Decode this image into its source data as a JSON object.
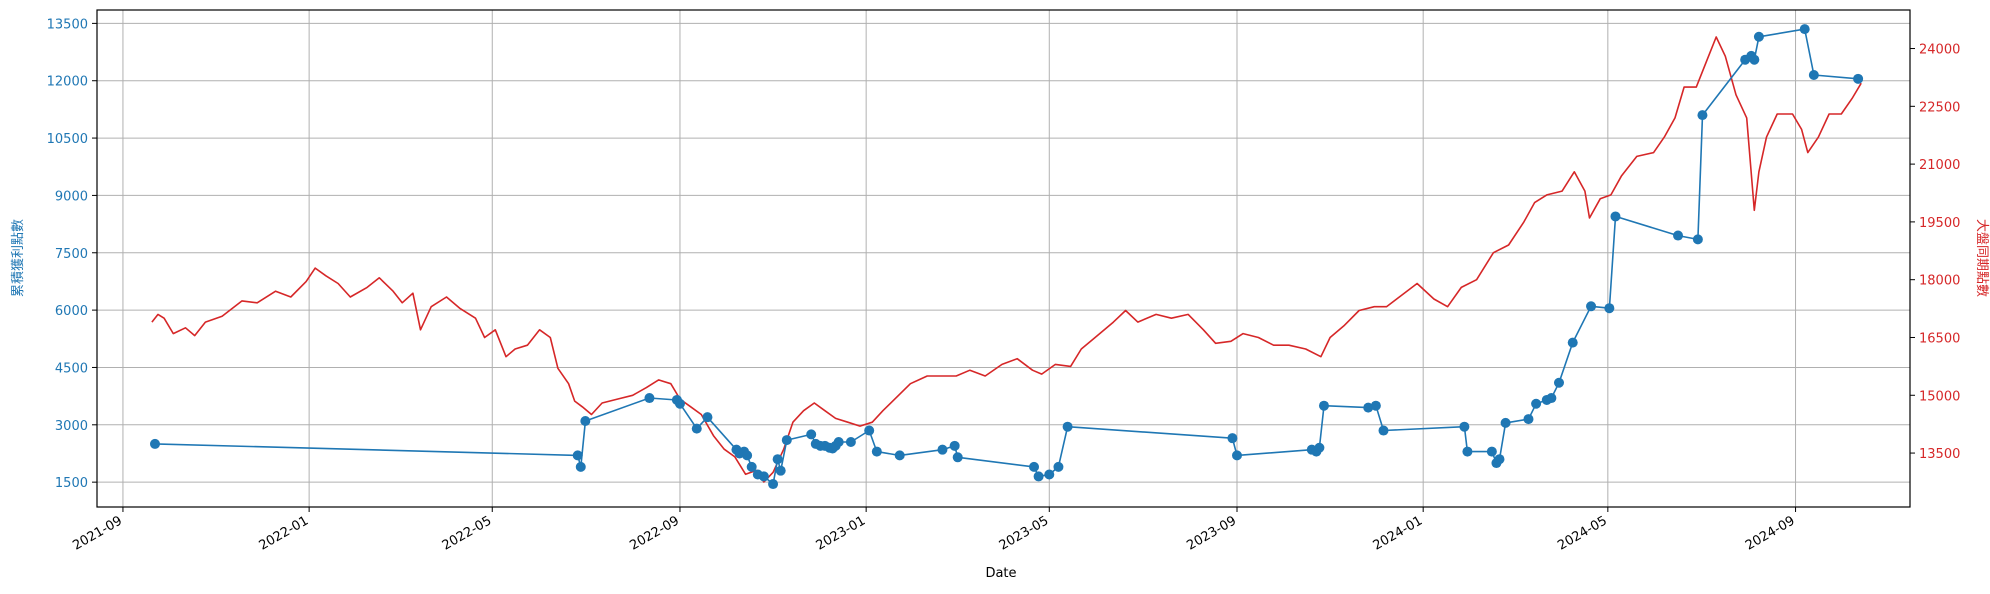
{
  "chart_data": {
    "type": "line",
    "xlabel": "Date",
    "ylabel_left": "累積獲利點數",
    "ylabel_right": "大盤同期點數",
    "x_ticks": [
      "2021-09",
      "2022-01",
      "2022-05",
      "2022-09",
      "2023-01",
      "2023-05",
      "2023-09",
      "2024-01",
      "2024-05",
      "2024-09"
    ],
    "y_left_ticks": [
      1500,
      3000,
      4500,
      6000,
      7500,
      9000,
      10500,
      12000,
      13500
    ],
    "y_right_ticks": [
      13500,
      15000,
      16500,
      18000,
      19500,
      21000,
      22500,
      24000
    ],
    "ylim_left": [
      850,
      13850
    ],
    "ylim_right": [
      12100,
      25000
    ],
    "xlim": [
      "2021-08-15",
      "2024-11-15"
    ],
    "grid": true,
    "colors": {
      "left_series": "#1f77b4",
      "right_series": "#d62728",
      "grid": "#b0b0b0",
      "axis": "#000000"
    },
    "series": [
      {
        "axis": "left",
        "marker": "circle",
        "points": [
          [
            "2021-09-22",
            2500
          ],
          [
            "2022-06-26",
            2200
          ],
          [
            "2022-06-28",
            1900
          ],
          [
            "2022-07-01",
            3100
          ],
          [
            "2022-08-12",
            3700
          ],
          [
            "2022-08-30",
            3650
          ],
          [
            "2022-09-01",
            3550
          ],
          [
            "2022-09-12",
            2900
          ],
          [
            "2022-09-19",
            3200
          ],
          [
            "2022-10-08",
            2350
          ],
          [
            "2022-10-10",
            2250
          ],
          [
            "2022-10-13",
            2300
          ],
          [
            "2022-10-15",
            2200
          ],
          [
            "2022-10-18",
            1900
          ],
          [
            "2022-10-22",
            1700
          ],
          [
            "2022-10-26",
            1650
          ],
          [
            "2022-11-01",
            1450
          ],
          [
            "2022-11-04",
            2100
          ],
          [
            "2022-11-06",
            1800
          ],
          [
            "2022-11-10",
            2600
          ],
          [
            "2022-11-26",
            2750
          ],
          [
            "2022-11-29",
            2500
          ],
          [
            "2022-12-02",
            2450
          ],
          [
            "2022-12-05",
            2450
          ],
          [
            "2022-12-08",
            2400
          ],
          [
            "2022-12-10",
            2380
          ],
          [
            "2022-12-12",
            2450
          ],
          [
            "2022-12-14",
            2550
          ],
          [
            "2022-12-22",
            2550
          ],
          [
            "2023-01-03",
            2850
          ],
          [
            "2023-01-08",
            2300
          ],
          [
            "2023-01-23",
            2200
          ],
          [
            "2023-02-20",
            2350
          ],
          [
            "2023-02-28",
            2450
          ],
          [
            "2023-03-02",
            2150
          ],
          [
            "2023-04-21",
            1900
          ],
          [
            "2023-04-24",
            1650
          ],
          [
            "2023-05-01",
            1700
          ],
          [
            "2023-05-07",
            1900
          ],
          [
            "2023-05-13",
            2950
          ],
          [
            "2023-08-29",
            2650
          ],
          [
            "2023-09-01",
            2200
          ],
          [
            "2023-10-20",
            2350
          ],
          [
            "2023-10-23",
            2300
          ],
          [
            "2023-10-25",
            2400
          ],
          [
            "2023-10-28",
            3500
          ],
          [
            "2023-11-26",
            3450
          ],
          [
            "2023-12-01",
            3500
          ],
          [
            "2023-12-06",
            2850
          ],
          [
            "2024-01-28",
            2950
          ],
          [
            "2024-01-30",
            2300
          ],
          [
            "2024-02-15",
            2300
          ],
          [
            "2024-02-18",
            2000
          ],
          [
            "2024-02-20",
            2100
          ],
          [
            "2024-02-24",
            3050
          ],
          [
            "2024-03-10",
            3150
          ],
          [
            "2024-03-15",
            3550
          ],
          [
            "2024-03-22",
            3650
          ],
          [
            "2024-03-25",
            3700
          ],
          [
            "2024-03-30",
            4100
          ],
          [
            "2024-04-08",
            5150
          ],
          [
            "2024-04-20",
            6100
          ],
          [
            "2024-05-02",
            6050
          ],
          [
            "2024-05-06",
            8450
          ],
          [
            "2024-06-16",
            7950
          ],
          [
            "2024-06-29",
            7850
          ],
          [
            "2024-07-02",
            11100
          ],
          [
            "2024-07-30",
            12550
          ],
          [
            "2024-08-03",
            12650
          ],
          [
            "2024-08-05",
            12550
          ],
          [
            "2024-08-08",
            13150
          ],
          [
            "2024-09-07",
            13350
          ],
          [
            "2024-09-13",
            12150
          ],
          [
            "2024-10-12",
            12050
          ]
        ]
      },
      {
        "axis": "right",
        "marker": "none",
        "points": [
          [
            "2021-09-20",
            16900
          ],
          [
            "2021-09-24",
            17100
          ],
          [
            "2021-09-28",
            17000
          ],
          [
            "2021-10-04",
            16600
          ],
          [
            "2021-10-12",
            16750
          ],
          [
            "2021-10-18",
            16550
          ],
          [
            "2021-10-25",
            16900
          ],
          [
            "2021-11-05",
            17050
          ],
          [
            "2021-11-18",
            17450
          ],
          [
            "2021-11-28",
            17400
          ],
          [
            "2021-12-10",
            17700
          ],
          [
            "2021-12-20",
            17550
          ],
          [
            "2021-12-30",
            17950
          ],
          [
            "2022-01-05",
            18300
          ],
          [
            "2022-01-12",
            18100
          ],
          [
            "2022-01-20",
            17900
          ],
          [
            "2022-01-28",
            17550
          ],
          [
            "2022-02-08",
            17800
          ],
          [
            "2022-02-16",
            18050
          ],
          [
            "2022-02-25",
            17700
          ],
          [
            "2022-03-03",
            17400
          ],
          [
            "2022-03-10",
            17650
          ],
          [
            "2022-03-15",
            16700
          ],
          [
            "2022-03-22",
            17300
          ],
          [
            "2022-04-01",
            17550
          ],
          [
            "2022-04-10",
            17250
          ],
          [
            "2022-04-20",
            17000
          ],
          [
            "2022-04-26",
            16500
          ],
          [
            "2022-05-03",
            16700
          ],
          [
            "2022-05-10",
            16000
          ],
          [
            "2022-05-16",
            16200
          ],
          [
            "2022-05-24",
            16300
          ],
          [
            "2022-06-01",
            16700
          ],
          [
            "2022-06-08",
            16500
          ],
          [
            "2022-06-13",
            15700
          ],
          [
            "2022-06-20",
            15300
          ],
          [
            "2022-06-24",
            14850
          ],
          [
            "2022-06-29",
            14700
          ],
          [
            "2022-07-05",
            14500
          ],
          [
            "2022-07-12",
            14800
          ],
          [
            "2022-07-22",
            14900
          ],
          [
            "2022-08-01",
            15000
          ],
          [
            "2022-08-10",
            15200
          ],
          [
            "2022-08-18",
            15400
          ],
          [
            "2022-08-26",
            15300
          ],
          [
            "2022-09-01",
            14900
          ],
          [
            "2022-09-08",
            14700
          ],
          [
            "2022-09-15",
            14500
          ],
          [
            "2022-09-23",
            13950
          ],
          [
            "2022-09-30",
            13600
          ],
          [
            "2022-10-07",
            13400
          ],
          [
            "2022-10-14",
            12950
          ],
          [
            "2022-10-21",
            13050
          ],
          [
            "2022-10-26",
            12750
          ],
          [
            "2022-11-01",
            13000
          ],
          [
            "2022-11-08",
            13600
          ],
          [
            "2022-11-14",
            14300
          ],
          [
            "2022-11-21",
            14600
          ],
          [
            "2022-11-28",
            14800
          ],
          [
            "2022-12-05",
            14600
          ],
          [
            "2022-12-12",
            14400
          ],
          [
            "2022-12-20",
            14300
          ],
          [
            "2022-12-28",
            14200
          ],
          [
            "2023-01-05",
            14300
          ],
          [
            "2023-01-12",
            14600
          ],
          [
            "2023-01-30",
            15300
          ],
          [
            "2023-02-10",
            15500
          ],
          [
            "2023-02-20",
            15500
          ],
          [
            "2023-03-01",
            15500
          ],
          [
            "2023-03-10",
            15650
          ],
          [
            "2023-03-20",
            15500
          ],
          [
            "2023-03-31",
            15800
          ],
          [
            "2023-04-10",
            15950
          ],
          [
            "2023-04-20",
            15650
          ],
          [
            "2023-04-26",
            15550
          ],
          [
            "2023-05-05",
            15800
          ],
          [
            "2023-05-15",
            15750
          ],
          [
            "2023-05-22",
            16200
          ],
          [
            "2023-05-31",
            16500
          ],
          [
            "2023-06-12",
            16900
          ],
          [
            "2023-06-20",
            17200
          ],
          [
            "2023-06-28",
            16900
          ],
          [
            "2023-07-10",
            17100
          ],
          [
            "2023-07-20",
            17000
          ],
          [
            "2023-07-31",
            17100
          ],
          [
            "2023-08-10",
            16700
          ],
          [
            "2023-08-18",
            16350
          ],
          [
            "2023-08-28",
            16400
          ],
          [
            "2023-09-05",
            16600
          ],
          [
            "2023-09-15",
            16500
          ],
          [
            "2023-09-25",
            16300
          ],
          [
            "2023-10-05",
            16300
          ],
          [
            "2023-10-16",
            16200
          ],
          [
            "2023-10-26",
            16000
          ],
          [
            "2023-11-01",
            16500
          ],
          [
            "2023-11-10",
            16800
          ],
          [
            "2023-11-20",
            17200
          ],
          [
            "2023-11-30",
            17300
          ],
          [
            "2023-12-08",
            17300
          ],
          [
            "2023-12-18",
            17600
          ],
          [
            "2023-12-28",
            17900
          ],
          [
            "2024-01-08",
            17500
          ],
          [
            "2024-01-17",
            17300
          ],
          [
            "2024-01-26",
            17800
          ],
          [
            "2024-02-05",
            18000
          ],
          [
            "2024-02-16",
            18700
          ],
          [
            "2024-02-26",
            18900
          ],
          [
            "2024-03-07",
            19500
          ],
          [
            "2024-03-14",
            20000
          ],
          [
            "2024-03-22",
            20200
          ],
          [
            "2024-04-01",
            20300
          ],
          [
            "2024-04-09",
            20800
          ],
          [
            "2024-04-16",
            20300
          ],
          [
            "2024-04-19",
            19600
          ],
          [
            "2024-04-26",
            20100
          ],
          [
            "2024-05-03",
            20200
          ],
          [
            "2024-05-10",
            20700
          ],
          [
            "2024-05-20",
            21200
          ],
          [
            "2024-05-31",
            21300
          ],
          [
            "2024-06-07",
            21700
          ],
          [
            "2024-06-14",
            22200
          ],
          [
            "2024-06-20",
            23000
          ],
          [
            "2024-06-28",
            23000
          ],
          [
            "2024-07-05",
            23700
          ],
          [
            "2024-07-11",
            24300
          ],
          [
            "2024-07-17",
            23800
          ],
          [
            "2024-07-24",
            22800
          ],
          [
            "2024-07-31",
            22200
          ],
          [
            "2024-08-05",
            19800
          ],
          [
            "2024-08-08",
            20800
          ],
          [
            "2024-08-13",
            21700
          ],
          [
            "2024-08-20",
            22300
          ],
          [
            "2024-08-30",
            22300
          ],
          [
            "2024-09-05",
            21900
          ],
          [
            "2024-09-09",
            21300
          ],
          [
            "2024-09-16",
            21700
          ],
          [
            "2024-09-23",
            22300
          ],
          [
            "2024-10-01",
            22300
          ],
          [
            "2024-10-08",
            22700
          ],
          [
            "2024-10-14",
            23100
          ]
        ]
      }
    ]
  }
}
